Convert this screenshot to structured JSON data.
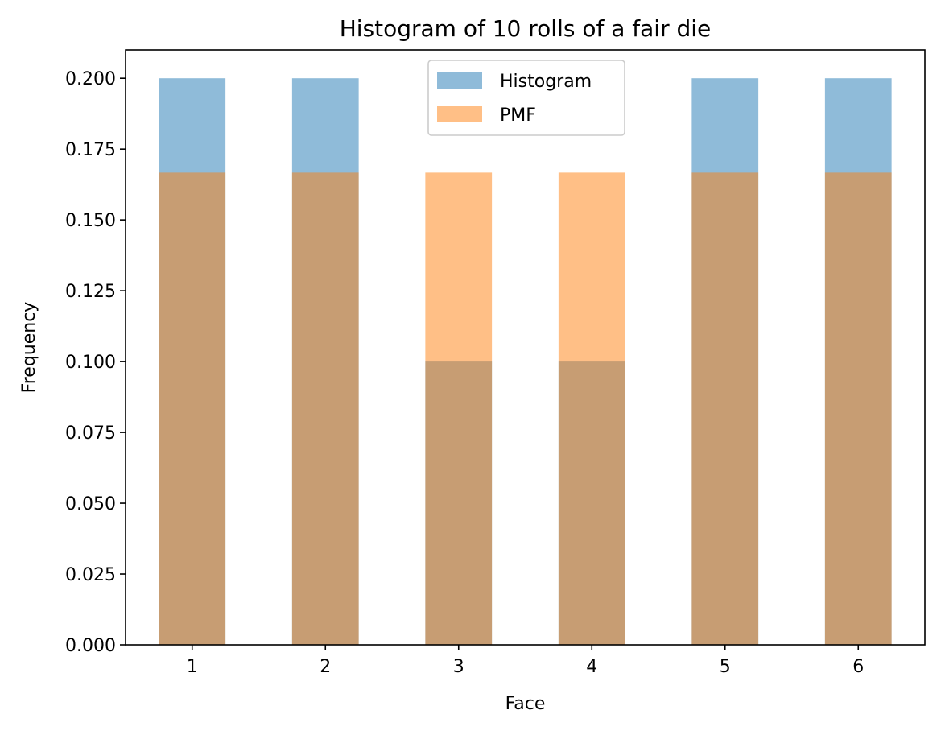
{
  "chart_data": {
    "type": "bar",
    "title": "Histogram of 10 rolls of a fair die",
    "xlabel": "Face",
    "ylabel": "Frequency",
    "categories": [
      "1",
      "2",
      "3",
      "4",
      "5",
      "6"
    ],
    "x": [
      1,
      2,
      3,
      4,
      5,
      6
    ],
    "series": [
      {
        "name": "Histogram",
        "values": [
          0.2,
          0.2,
          0.1,
          0.1,
          0.2,
          0.2
        ],
        "color": "#1f77b4",
        "alpha": 0.5
      },
      {
        "name": "PMF",
        "values": [
          0.1667,
          0.1667,
          0.1667,
          0.1667,
          0.1667,
          0.1667
        ],
        "color": "#ff7f0e",
        "alpha": 0.5
      }
    ],
    "xlim": [
      0.5,
      6.5
    ],
    "ylim": [
      0,
      0.21
    ],
    "yticks": [
      0.0,
      0.025,
      0.05,
      0.075,
      0.1,
      0.125,
      0.15,
      0.175,
      0.2
    ],
    "ytick_labels": [
      "0.000",
      "0.025",
      "0.050",
      "0.075",
      "0.100",
      "0.125",
      "0.150",
      "0.175",
      "0.200"
    ],
    "xticks": [
      1,
      2,
      3,
      4,
      5,
      6
    ],
    "xtick_labels": [
      "1",
      "2",
      "3",
      "4",
      "5",
      "6"
    ],
    "grid": false,
    "legend_position": "upper center"
  }
}
